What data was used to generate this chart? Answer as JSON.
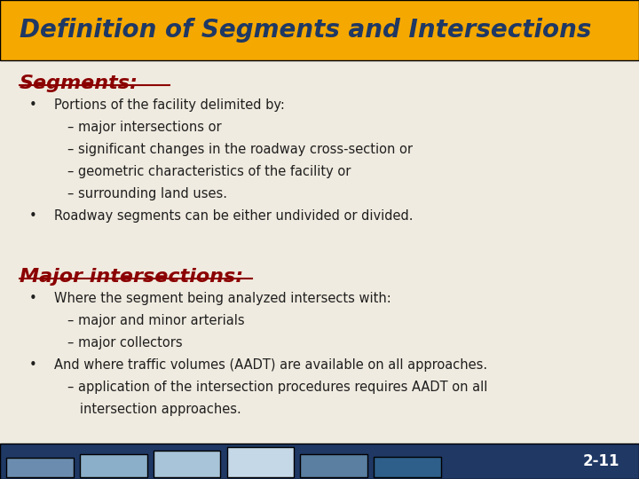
{
  "title": "Definition of Segments and Intersections",
  "title_bg": "#F5A800",
  "title_color": "#1F3864",
  "slide_bg": "#F0EBE0",
  "body_color": "#1F1F1F",
  "section1_heading": "Segments:",
  "section1_color": "#8B0000",
  "section1_bullets": [
    {
      "indent": 1,
      "text": "Portions of the facility delimited by:"
    },
    {
      "indent": 2,
      "text": "– major intersections or"
    },
    {
      "indent": 2,
      "text": "– significant changes in the roadway cross-section or"
    },
    {
      "indent": 2,
      "text": "– geometric characteristics of the facility or"
    },
    {
      "indent": 2,
      "text": "– surrounding land uses."
    },
    {
      "indent": 1,
      "text": "Roadway segments can be either undivided or divided."
    }
  ],
  "section2_heading": "Major intersections:",
  "section2_color": "#8B0000",
  "section2_bullets": [
    {
      "indent": 1,
      "text": "Where the segment being analyzed intersects with:"
    },
    {
      "indent": 2,
      "text": "– major and minor arterials"
    },
    {
      "indent": 2,
      "text": "– major collectors"
    },
    {
      "indent": 1,
      "text": "And where traffic volumes (AADT) are available on all approaches."
    },
    {
      "indent": 2,
      "text": "– application of the intersection procedures requires AADT on all"
    },
    {
      "indent": 2,
      "text": "   intersection approaches."
    }
  ],
  "footer_colors": [
    "#6B8CAE",
    "#8BAFC8",
    "#A8C4D8",
    "#C5D8E8",
    "#5A7FA0",
    "#2E5F8A"
  ],
  "footer_bg": "#1F3864",
  "slide_number": "2-11"
}
